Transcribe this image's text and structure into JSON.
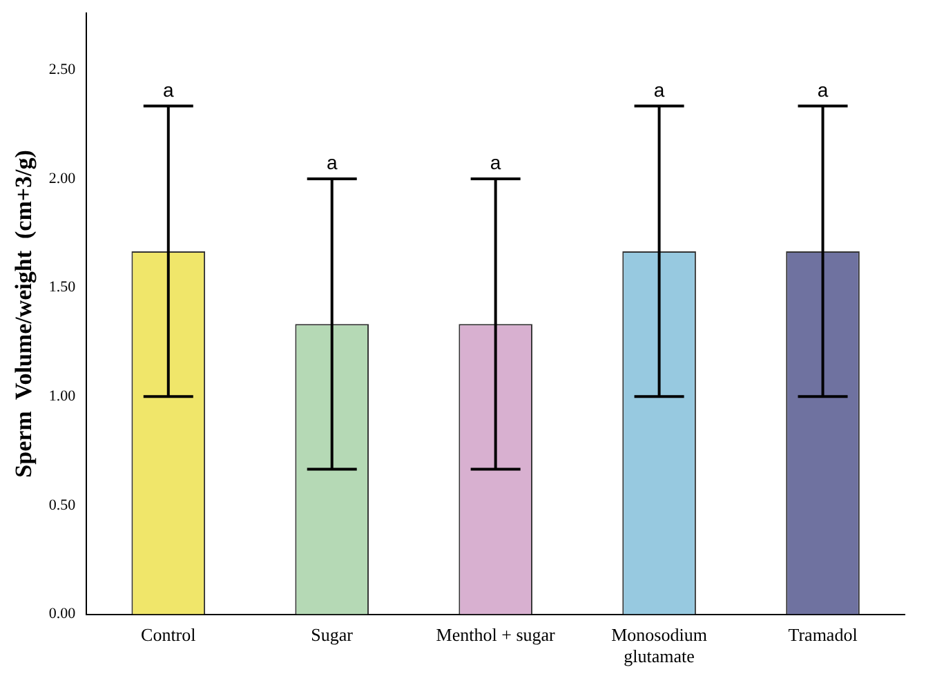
{
  "chart_data": {
    "type": "bar",
    "ylabel": "Sperm  Volume/weight  (cm+3/g)",
    "categories": [
      "Control",
      "Sugar",
      "Menthol + sugar",
      "Monosodium\nglutamate",
      "Tramadol"
    ],
    "values": [
      1.667,
      1.333,
      1.333,
      1.667,
      1.667
    ],
    "colors": [
      "#f0e66a",
      "#b5d9b5",
      "#d8b0d0",
      "#97c9e0",
      "#6f72a0"
    ],
    "errors": [
      0.667,
      0.667,
      0.667,
      0.667,
      0.667
    ],
    "ylim": [
      0,
      2.76
    ],
    "yticks": [
      {
        "value": 0,
        "label": "0.00"
      },
      {
        "value": 0.5,
        "label": "0.50"
      },
      {
        "value": 1,
        "label": "1.00"
      },
      {
        "value": 1.5,
        "label": "1.50"
      },
      {
        "value": 2,
        "label": "2.00"
      },
      {
        "value": 2.5,
        "label": "2.50"
      }
    ],
    "grid": false,
    "legend": false,
    "annotations": [
      {
        "text": "a",
        "x": "Control",
        "y": 2.333
      },
      {
        "text": "a",
        "x": "Sugar",
        "y": 2
      },
      {
        "text": "a",
        "x": "Menthol + sugar",
        "y": 2
      },
      {
        "text": "a",
        "x": "Monosodium\nglutamate",
        "y": 2.333
      },
      {
        "text": "a",
        "x": "Tramadol",
        "y": 2.333
      }
    ]
  }
}
